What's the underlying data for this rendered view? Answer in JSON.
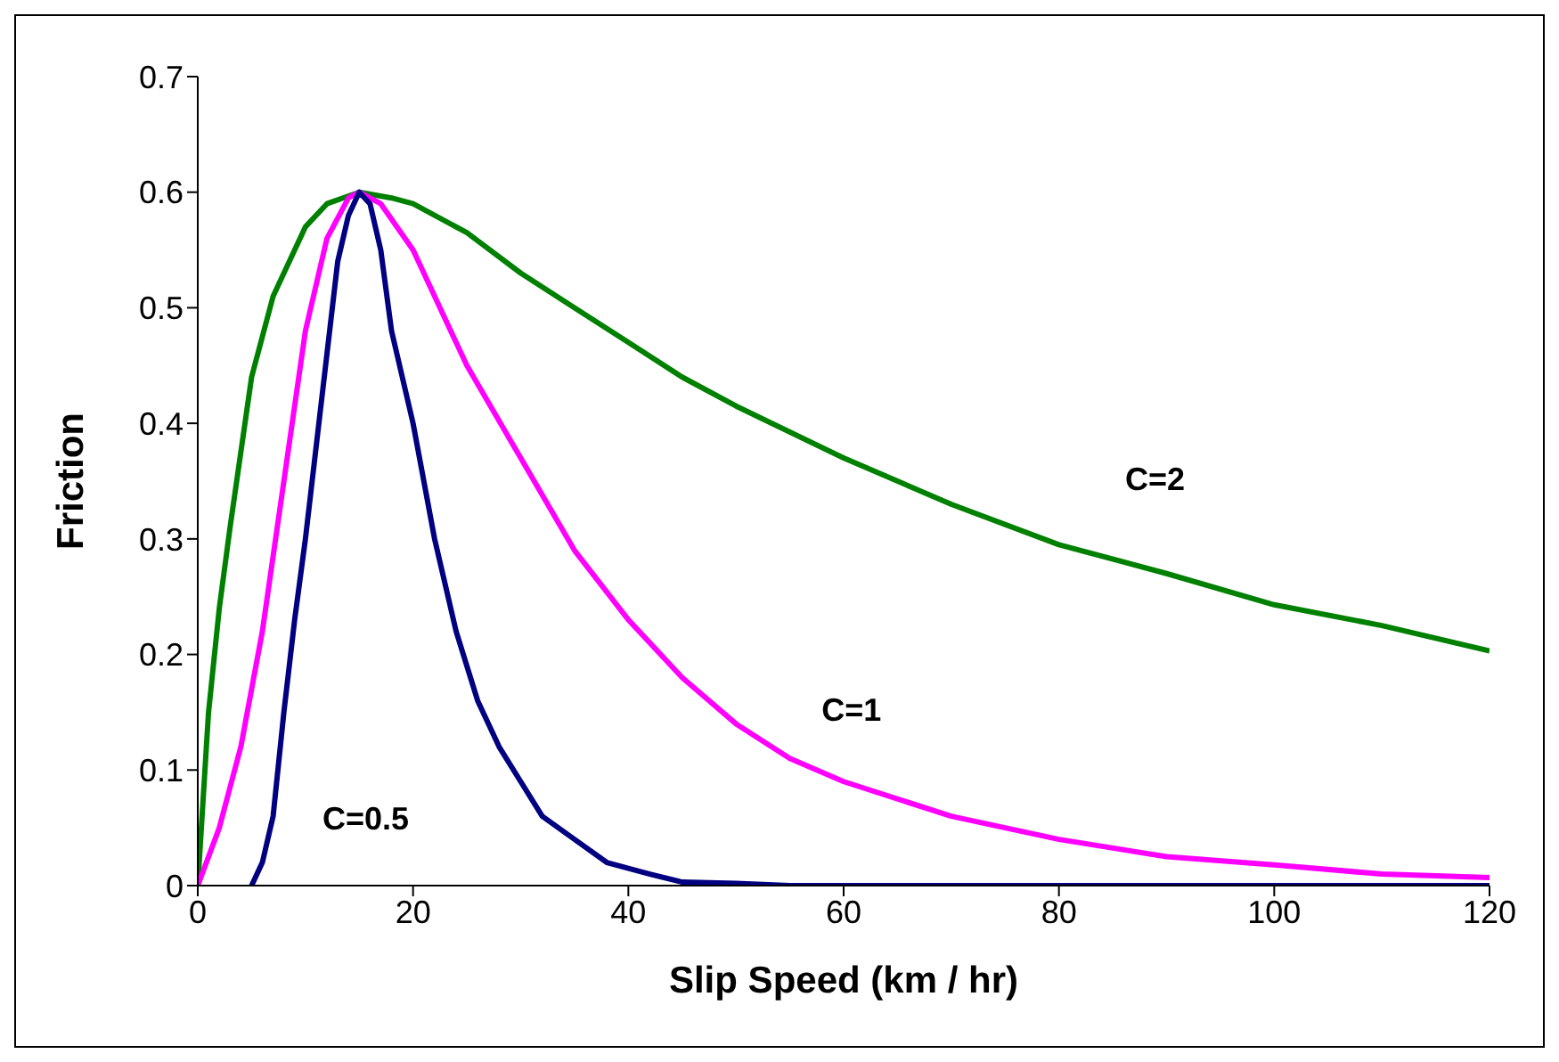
{
  "chart_data": {
    "type": "line",
    "xlabel": "Slip Speed (km / hr)",
    "ylabel": "Friction",
    "xlim": [
      0,
      120
    ],
    "xticks": [
      0,
      20,
      40,
      60,
      80,
      100,
      120
    ],
    "ylim": [
      0,
      0.7
    ],
    "yticks": [
      0,
      0.1,
      0.2,
      0.3,
      0.4,
      0.5,
      0.6,
      0.7
    ],
    "grid": false,
    "legend": false,
    "marker": "none",
    "line_style": "solid",
    "series": [
      {
        "name": "C=2",
        "color": "#008000",
        "x": [
          0,
          1,
          2,
          3,
          5,
          7,
          10,
          12,
          15,
          18,
          20,
          25,
          30,
          35,
          40,
          45,
          50,
          60,
          70,
          80,
          90,
          100,
          110,
          120
        ],
        "values": [
          0,
          0.15,
          0.24,
          0.31,
          0.44,
          0.51,
          0.57,
          0.59,
          0.6,
          0.595,
          0.59,
          0.565,
          0.53,
          0.5,
          0.47,
          0.44,
          0.415,
          0.37,
          0.33,
          0.295,
          0.27,
          0.243,
          0.225,
          0.203
        ]
      },
      {
        "name": "C=1",
        "color": "#ff00ff",
        "x": [
          0,
          2,
          4,
          6,
          8,
          10,
          12,
          14,
          15,
          17,
          20,
          25,
          30,
          35,
          40,
          45,
          50,
          55,
          60,
          70,
          80,
          90,
          100,
          110,
          120
        ],
        "values": [
          0,
          0.05,
          0.12,
          0.22,
          0.35,
          0.48,
          0.56,
          0.595,
          0.6,
          0.59,
          0.55,
          0.45,
          0.37,
          0.29,
          0.23,
          0.18,
          0.14,
          0.11,
          0.09,
          0.06,
          0.04,
          0.025,
          0.018,
          0.01,
          0.007
        ]
      },
      {
        "name": "C=0.5",
        "color": "#000080",
        "x": [
          5,
          6,
          7,
          8,
          9,
          10,
          11,
          12,
          13,
          14,
          15,
          16,
          17,
          18,
          20,
          22,
          24,
          26,
          28,
          30,
          32,
          35,
          38,
          42,
          45,
          50,
          55,
          120
        ],
        "values": [
          0,
          0.02,
          0.06,
          0.15,
          0.23,
          0.3,
          0.38,
          0.46,
          0.54,
          0.58,
          0.6,
          0.59,
          0.55,
          0.48,
          0.4,
          0.3,
          0.22,
          0.16,
          0.12,
          0.09,
          0.06,
          0.04,
          0.02,
          0.01,
          0.003,
          0.002,
          0,
          0
        ]
      }
    ]
  }
}
